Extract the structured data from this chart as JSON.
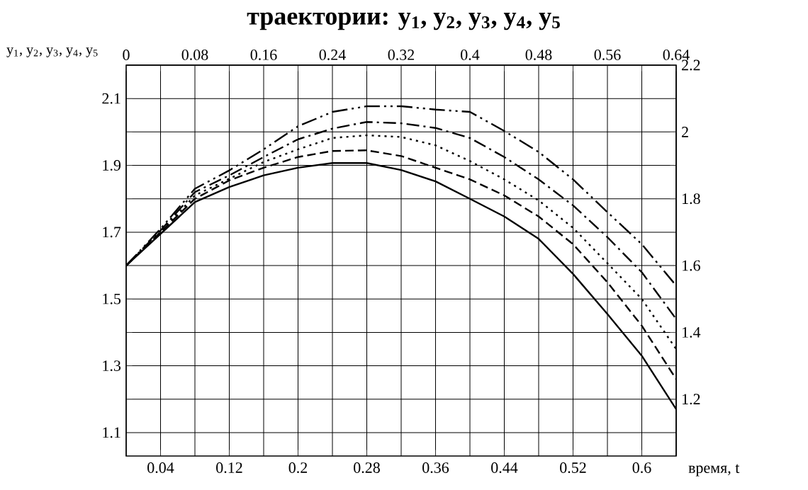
{
  "chart_data": {
    "type": "line",
    "title": "траектории: y$_{1}$, y$_{2}$, y$_{3}$, y$_{4}$, y$_{5}$",
    "ylabel": "y$_{1}$, y$_{2}$, y$_{3}$, y$_{4}$, y$_{5}$",
    "xlabel": "время, t",
    "x": [
      0,
      0.04,
      0.08,
      0.12,
      0.16,
      0.2,
      0.24,
      0.28,
      0.32,
      0.36,
      0.4,
      0.44,
      0.48,
      0.52,
      0.56,
      0.6,
      0.64
    ],
    "series": [
      {
        "color": "#000000",
        "line_style": "solid",
        "values": [
          1.6,
          1.695,
          1.79,
          1.835,
          1.87,
          1.893,
          1.907,
          1.907,
          1.886,
          1.852,
          1.8,
          1.747,
          1.68,
          1.575,
          1.455,
          1.33,
          1.17
        ]
      },
      {
        "color": "#000000",
        "line_style": "dashed",
        "values": [
          1.6,
          1.7,
          1.8,
          1.855,
          1.893,
          1.925,
          1.943,
          1.945,
          1.928,
          1.893,
          1.858,
          1.81,
          1.747,
          1.664,
          1.55,
          1.42,
          1.26
        ]
      },
      {
        "color": "#000000",
        "line_style": "dotted",
        "values": [
          1.6,
          1.7,
          1.81,
          1.86,
          1.91,
          1.948,
          1.982,
          1.99,
          1.985,
          1.96,
          1.913,
          1.858,
          1.795,
          1.713,
          1.607,
          1.5,
          1.35
        ]
      },
      {
        "color": "#000000",
        "line_style": "dashdot",
        "values": [
          1.6,
          1.705,
          1.82,
          1.87,
          1.925,
          1.978,
          2.01,
          2.03,
          2.026,
          2.012,
          1.982,
          1.925,
          1.858,
          1.78,
          1.685,
          1.58,
          1.44
        ]
      },
      {
        "color": "#000000",
        "line_style": "dashdotdot",
        "values": [
          1.6,
          1.71,
          1.83,
          1.885,
          1.948,
          2.017,
          2.06,
          2.077,
          2.077,
          2.067,
          2.06,
          2.003,
          1.94,
          1.858,
          1.76,
          1.664,
          1.54
        ]
      }
    ],
    "xlim": [
      0,
      0.64
    ],
    "xticks": [
      {
        "value": 0,
        "label": null
      },
      0.04,
      {
        "value": 0.08,
        "label": null
      },
      0.12,
      {
        "value": 0.16,
        "label": null
      },
      0.2,
      {
        "value": 0.24,
        "label": null
      },
      0.28,
      {
        "value": 0.32,
        "label": null
      },
      0.36,
      {
        "value": 0.4,
        "label": null
      },
      0.44,
      {
        "value": 0.48,
        "label": null
      },
      0.52,
      {
        "value": 0.56,
        "label": null
      },
      0.6,
      {
        "value": 0.64,
        "label": null
      }
    ],
    "x2lim": [
      0,
      0.64
    ],
    "x2ticks": [
      0,
      0.08,
      0.16,
      0.24,
      0.32,
      0.4,
      0.48,
      0.56,
      0.64
    ],
    "ylim": [
      1.03,
      2.2
    ],
    "yticks": [
      1.1,
      {
        "value": 1.2,
        "label": null
      },
      1.3,
      {
        "value": 1.4,
        "label": null
      },
      1.5,
      {
        "value": 1.6,
        "label": null
      },
      1.7,
      {
        "value": 1.8,
        "label": null
      },
      1.9,
      {
        "value": 2.0,
        "label": null
      },
      2.1,
      {
        "value": 2.2,
        "label": null
      }
    ],
    "y2lim": [
      1.03,
      2.2
    ],
    "y2ticks": [
      1.2,
      1.4,
      1.6,
      1.8,
      2,
      2.2
    ],
    "grid": true,
    "marker": "none"
  }
}
